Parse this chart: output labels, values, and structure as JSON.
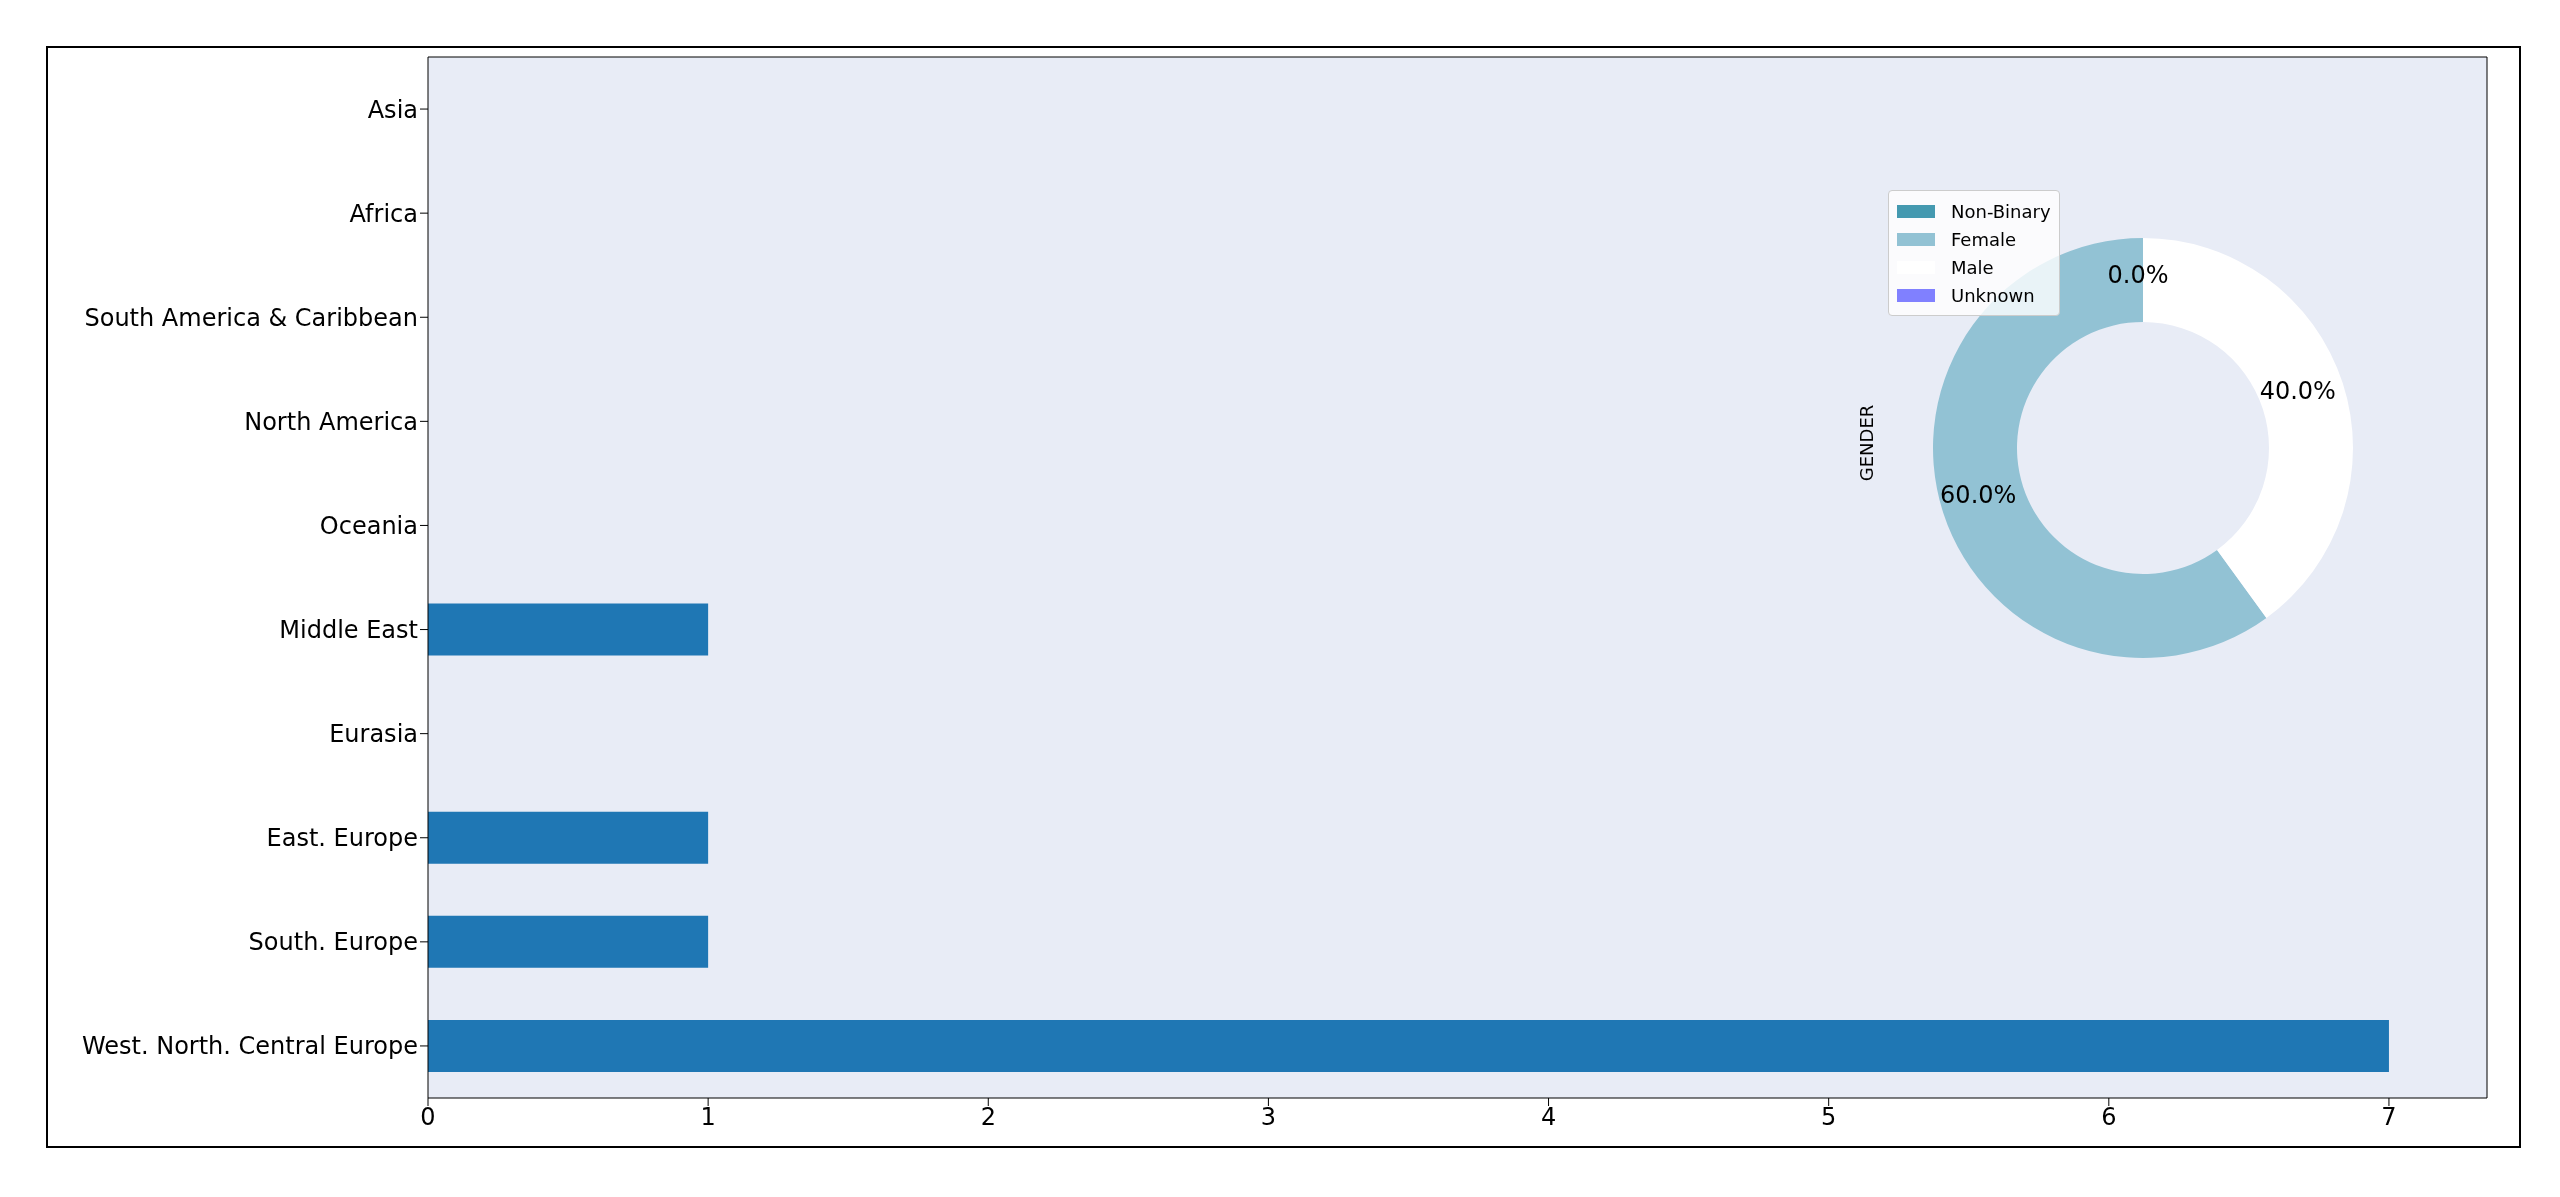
{
  "chart_data": [
    {
      "type": "bar",
      "orientation": "horizontal",
      "categories": [
        "Asia",
        "Africa",
        "South America & Caribbean",
        "North America",
        "Oceania",
        "Middle East",
        "Eurasia",
        "East. Europe",
        "South. Europe",
        "West. North. Central Europe"
      ],
      "values": [
        0,
        0,
        0,
        0,
        0,
        1,
        0,
        1,
        1,
        7
      ],
      "color": "#1f77b4",
      "xlim": [
        0,
        7.35
      ],
      "xticks": [
        0,
        1,
        2,
        3,
        4,
        5,
        6,
        7
      ]
    },
    {
      "type": "donut",
      "ylabel": "GENDER",
      "categories": [
        "Non-Binary",
        "Female",
        "Male",
        "Unknown"
      ],
      "values": [
        0,
        60,
        40,
        0
      ],
      "colors": [
        "#4499b0",
        "#92c2d4",
        "#ffffff",
        "#8080ff"
      ],
      "value_labels": [
        "0.0%",
        "60.0%",
        "40.0%",
        null
      ],
      "legend": "top left"
    }
  ]
}
